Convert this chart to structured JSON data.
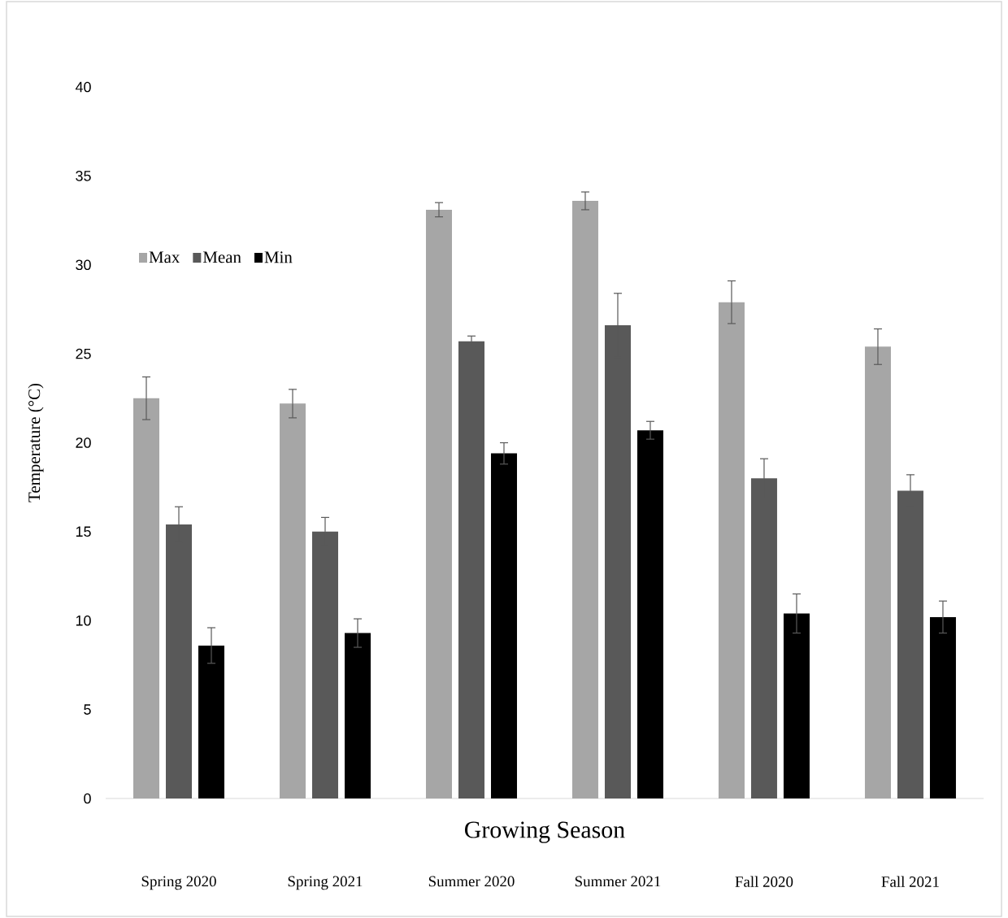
{
  "chart_data": {
    "type": "bar",
    "xlabel": "Growing Season",
    "ylabel": "Temperature (°C)",
    "categories": [
      "Spring 2020",
      "Spring 2021",
      "Summer 2020",
      "Summer 2021",
      "Fall 2020",
      "Fall 2021"
    ],
    "series": [
      {
        "name": "Max",
        "color": "#a6a6a6",
        "values": [
          22.5,
          22.2,
          33.1,
          33.6,
          27.9,
          25.4
        ],
        "errors": [
          1.2,
          0.8,
          0.4,
          0.5,
          1.2,
          1.0
        ]
      },
      {
        "name": "Mean",
        "color": "#595959",
        "values": [
          15.4,
          15.0,
          25.7,
          26.6,
          18.0,
          17.3
        ],
        "errors": [
          1.0,
          0.8,
          0.3,
          1.8,
          1.1,
          0.9
        ]
      },
      {
        "name": "Min",
        "color": "#000000",
        "values": [
          8.6,
          9.3,
          19.4,
          20.7,
          10.4,
          10.2
        ],
        "errors": [
          1.0,
          0.8,
          0.6,
          0.5,
          1.1,
          0.9
        ]
      }
    ],
    "ylim": [
      0,
      40
    ],
    "yticks": [
      0,
      5,
      10,
      15,
      20,
      25,
      30,
      35,
      40
    ],
    "grid": false,
    "legend": "top left"
  }
}
